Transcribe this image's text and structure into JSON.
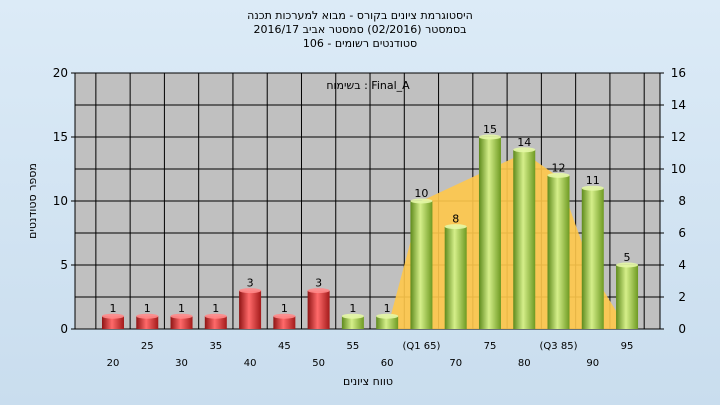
{
  "header": {
    "title_line1": "היסטוגרמת ציונים בקורס - מבוא למערכות תכנה",
    "title_line2": "בסמסטר  (02/2016)  סמסטר אביב 2016/17",
    "title_line3": "סטודנטים רשומים - 106"
  },
  "chart_data": {
    "type": "bar",
    "annotation": "בשימוח : Final_A",
    "xlabel": "טווח ציונים",
    "ylabel": "מספר סטודנטים",
    "ylim": [
      0,
      20
    ],
    "y_ticks": [
      0,
      5,
      10,
      15,
      20
    ],
    "y2lim": [
      0,
      16
    ],
    "y2_ticks": [
      0,
      2,
      4,
      6,
      8,
      10,
      12,
      14,
      16
    ],
    "grid": true,
    "categories": [
      "20",
      "25",
      "30",
      "35",
      "40",
      "45",
      "50",
      "55",
      "60",
      "(Q1 65)",
      "70",
      "75",
      "80",
      "(Q3 85)",
      "90",
      "95"
    ],
    "series": [
      {
        "values": [
          1,
          1,
          1,
          1,
          3,
          1,
          3,
          1,
          1,
          10,
          8,
          15,
          14,
          12,
          11,
          5
        ]
      }
    ],
    "bar_colors": [
      "#dd2b2b",
      "#dd2b2b",
      "#dd2b2b",
      "#dd2b2b",
      "#dd2b2b",
      "#dd2b2b",
      "#dd2b2b",
      "#9cc43f",
      "#9cc43f",
      "#9cc43f",
      "#9cc43f",
      "#9cc43f",
      "#9cc43f",
      "#9cc43f",
      "#9cc43f",
      "#9cc43f"
    ],
    "area_values": [
      0,
      0,
      0,
      0,
      0,
      0,
      0,
      0,
      0,
      8,
      9,
      10,
      11,
      9.5,
      3.5,
      0
    ],
    "area_color": "#ffc84a",
    "plot_background": "#c0c0c0"
  }
}
